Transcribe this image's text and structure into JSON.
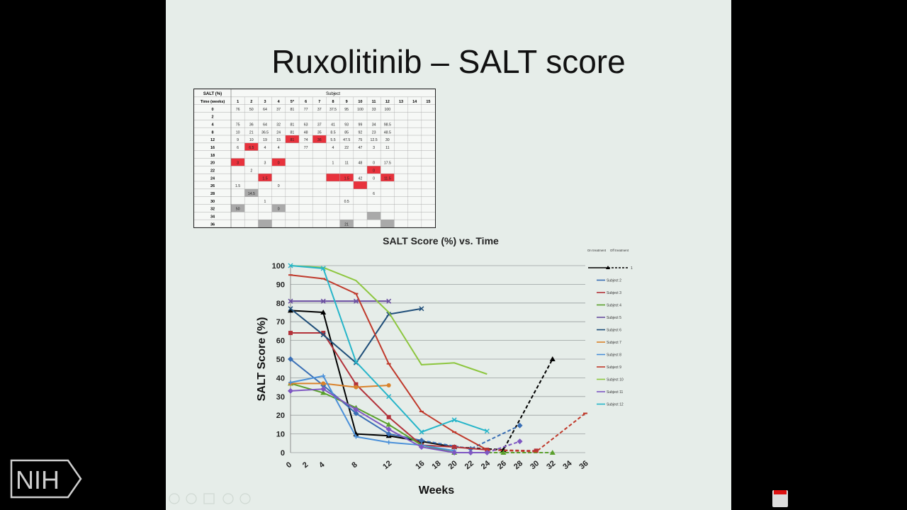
{
  "slide": {
    "title": "Ruxolitinib – SALT score"
  },
  "table": {
    "header_left": "SALT (%)",
    "header_group": "Subject",
    "time_label": "Time (weeks)",
    "subjects": [
      "1",
      "2",
      "3",
      "4",
      "5*",
      "6",
      "7",
      "8",
      "9",
      "10",
      "11",
      "12",
      "13",
      "14",
      "15"
    ],
    "rows": [
      {
        "t": "0",
        "c": [
          "76",
          "50",
          "64",
          "37",
          "81",
          "77",
          "37",
          "37.5",
          "95",
          "100",
          "33",
          "100",
          "",
          "",
          ""
        ]
      },
      {
        "t": "2",
        "c": [
          "",
          "",
          "",
          "",
          "",
          "",
          "",
          "",
          "",
          "",
          "",
          "",
          "",
          "",
          ""
        ]
      },
      {
        "t": "4",
        "c": [
          "75",
          "36",
          "64",
          "32",
          "81",
          "63",
          "37",
          "41",
          "93",
          "99",
          "34",
          "98.5",
          "",
          "",
          ""
        ]
      },
      {
        "t": "8",
        "c": [
          "10",
          "21",
          "36.5",
          "24",
          "81",
          "48",
          "35",
          "8.5",
          "85",
          "92",
          "23",
          "48.5",
          "",
          "",
          ""
        ]
      },
      {
        "t": "12",
        "c": [
          "9",
          "10",
          "19",
          "15",
          "81",
          "74",
          "36",
          "5.5",
          "47.5",
          "75",
          "12.5",
          "30",
          "",
          "",
          ""
        ]
      },
      {
        "t": "16",
        "c": [
          "6",
          "6.5",
          "4",
          "4",
          "",
          "77",
          "",
          "4",
          "22",
          "47",
          "3",
          "11",
          "",
          "",
          ""
        ]
      },
      {
        "t": "18",
        "c": [
          "",
          "",
          "",
          "",
          "",
          "",
          "",
          "",
          "",
          "",
          "",
          "",
          "",
          "",
          ""
        ]
      },
      {
        "t": "20",
        "c": [
          "3",
          "",
          "3",
          "0",
          "",
          "",
          "",
          "1",
          "11",
          "48",
          "0",
          "17.5",
          "",
          "",
          ""
        ]
      },
      {
        "t": "22",
        "c": [
          "",
          "2",
          "",
          "",
          "",
          "",
          "",
          "",
          "",
          "",
          "0",
          "",
          "",
          "",
          ""
        ]
      },
      {
        "t": "24",
        "c": [
          "",
          "",
          "1.5",
          "",
          "",
          "",
          "",
          "",
          "1.5",
          "42",
          "0",
          "11.5",
          "",
          "",
          ""
        ]
      },
      {
        "t": "26",
        "c": [
          "1.5",
          "",
          "",
          "0",
          "",
          "",
          "",
          "",
          "",
          "",
          "",
          "",
          "",
          "",
          ""
        ]
      },
      {
        "t": "28",
        "c": [
          "",
          "14.5",
          "",
          "",
          "",
          "",
          "",
          "",
          "",
          "",
          "6",
          "",
          "",
          "",
          ""
        ]
      },
      {
        "t": "30",
        "c": [
          "",
          "",
          "1",
          "",
          "",
          "",
          "",
          "",
          "0.5",
          "",
          "",
          "",
          "",
          "",
          ""
        ]
      },
      {
        "t": "32",
        "c": [
          "50",
          "",
          "",
          "0",
          "",
          "",
          "",
          "",
          "",
          "",
          "",
          "",
          "",
          "",
          ""
        ]
      },
      {
        "t": "34",
        "c": [
          "",
          "",
          "",
          "",
          "",
          "",
          "",
          "",
          "",
          "",
          "",
          "",
          "",
          "",
          ""
        ]
      },
      {
        "t": "36",
        "c": [
          "",
          "",
          "",
          "",
          "",
          "",
          "",
          "",
          "21",
          "",
          "",
          "",
          "",
          "",
          ""
        ]
      }
    ],
    "red_cells": [
      [
        7,
        0
      ],
      [
        5,
        1
      ],
      [
        4,
        4
      ],
      [
        7,
        3
      ],
      [
        4,
        6
      ],
      [
        9,
        2
      ],
      [
        9,
        7
      ],
      [
        9,
        8
      ],
      [
        10,
        9
      ],
      [
        8,
        10
      ],
      [
        9,
        11
      ]
    ],
    "gray_cells": [
      [
        11,
        1
      ],
      [
        13,
        0
      ],
      [
        13,
        3
      ],
      [
        15,
        2
      ],
      [
        15,
        8
      ],
      [
        14,
        10
      ],
      [
        15,
        11
      ]
    ]
  },
  "chart_data": {
    "type": "line",
    "title": "SALT Score (%) vs. Time",
    "xlabel": "Weeks",
    "ylabel": "SALT Score (%)",
    "xlim": [
      0,
      36
    ],
    "ylim": [
      0,
      100
    ],
    "x_ticks": [
      0,
      2,
      4,
      8,
      12,
      16,
      18,
      20,
      22,
      24,
      26,
      28,
      30,
      32,
      34,
      36
    ],
    "y_ticks": [
      0,
      10,
      20,
      30,
      40,
      50,
      60,
      70,
      80,
      90,
      100
    ],
    "grid": true,
    "legend_position": "right",
    "legend_header": {
      "on": "On treatment",
      "off": "Off treatment",
      "first_label": "1"
    },
    "series": [
      {
        "name": "1",
        "color": "#000000",
        "marker": "triangle",
        "on": [
          [
            0,
            76
          ],
          [
            4,
            75
          ],
          [
            8,
            10
          ],
          [
            12,
            9
          ],
          [
            16,
            6
          ],
          [
            20,
            3
          ]
        ],
        "off": [
          [
            20,
            3
          ],
          [
            26,
            1.5
          ],
          [
            32,
            50
          ]
        ]
      },
      {
        "name": "Subject 2",
        "color": "#3a6fb5",
        "marker": "diamond",
        "on": [
          [
            0,
            50
          ],
          [
            4,
            36
          ],
          [
            8,
            21
          ],
          [
            12,
            10
          ],
          [
            16,
            6.5
          ]
        ],
        "off": [
          [
            16,
            6.5
          ],
          [
            22,
            2
          ],
          [
            28,
            14.5
          ]
        ]
      },
      {
        "name": "Subject 3",
        "color": "#b3323a",
        "marker": "square",
        "on": [
          [
            0,
            64
          ],
          [
            4,
            64
          ],
          [
            8,
            36.5
          ],
          [
            12,
            19
          ],
          [
            16,
            4
          ],
          [
            20,
            3
          ],
          [
            24,
            1.5
          ]
        ],
        "off": [
          [
            24,
            1.5
          ],
          [
            30,
            1
          ]
        ]
      },
      {
        "name": "Subject 4",
        "color": "#5aa02c",
        "marker": "triangle",
        "on": [
          [
            0,
            37
          ],
          [
            4,
            32
          ],
          [
            8,
            24
          ],
          [
            12,
            15
          ],
          [
            16,
            4
          ],
          [
            20,
            0
          ]
        ],
        "off": [
          [
            20,
            0
          ],
          [
            26,
            0
          ],
          [
            32,
            0
          ]
        ]
      },
      {
        "name": "Subject 5",
        "color": "#6a4da0",
        "marker": "x",
        "on": [
          [
            0,
            81
          ],
          [
            4,
            81
          ],
          [
            8,
            81
          ],
          [
            12,
            81
          ]
        ],
        "off": []
      },
      {
        "name": "Subject 6",
        "color": "#1f4e79",
        "marker": "star",
        "on": [
          [
            0,
            77
          ],
          [
            4,
            63
          ],
          [
            8,
            48
          ],
          [
            12,
            74
          ],
          [
            16,
            77
          ]
        ],
        "off": []
      },
      {
        "name": "Subject 7",
        "color": "#d9822b",
        "marker": "circle",
        "on": [
          [
            0,
            37
          ],
          [
            4,
            37
          ],
          [
            8,
            35
          ],
          [
            12,
            36
          ]
        ],
        "off": []
      },
      {
        "name": "Subject 8",
        "color": "#4a90d9",
        "marker": "plus",
        "on": [
          [
            0,
            37.5
          ],
          [
            4,
            41
          ],
          [
            8,
            8.5
          ],
          [
            12,
            5.5
          ],
          [
            16,
            4
          ],
          [
            20,
            1
          ]
        ],
        "off": []
      },
      {
        "name": "Subject 9",
        "color": "#c0392b",
        "marker": "dash",
        "on": [
          [
            0,
            95
          ],
          [
            4,
            93
          ],
          [
            8,
            85
          ],
          [
            12,
            47.5
          ],
          [
            16,
            22
          ],
          [
            20,
            11
          ],
          [
            24,
            1.5
          ]
        ],
        "off": [
          [
            24,
            1.5
          ],
          [
            30,
            0.5
          ],
          [
            36,
            21
          ]
        ]
      },
      {
        "name": "Subject 10",
        "color": "#8dc63f",
        "marker": "none",
        "on": [
          [
            0,
            100
          ],
          [
            4,
            99
          ],
          [
            8,
            92
          ],
          [
            12,
            75
          ],
          [
            16,
            47
          ],
          [
            20,
            48
          ],
          [
            24,
            42
          ]
        ],
        "off": []
      },
      {
        "name": "Subject 11",
        "color": "#7e57c2",
        "marker": "diamond",
        "on": [
          [
            0,
            33
          ],
          [
            4,
            34
          ],
          [
            8,
            23
          ],
          [
            12,
            12.5
          ],
          [
            16,
            3
          ],
          [
            20,
            0
          ],
          [
            22,
            0
          ],
          [
            24,
            0
          ]
        ],
        "off": [
          [
            24,
            0
          ],
          [
            28,
            6
          ]
        ]
      },
      {
        "name": "Subject 12",
        "color": "#26b5c9",
        "marker": "x",
        "on": [
          [
            0,
            100
          ],
          [
            4,
            98.5
          ],
          [
            8,
            48.5
          ],
          [
            12,
            30
          ],
          [
            16,
            11
          ],
          [
            20,
            17.5
          ],
          [
            24,
            11.5
          ]
        ],
        "off": []
      }
    ]
  },
  "nih": {
    "label": "NIH"
  }
}
